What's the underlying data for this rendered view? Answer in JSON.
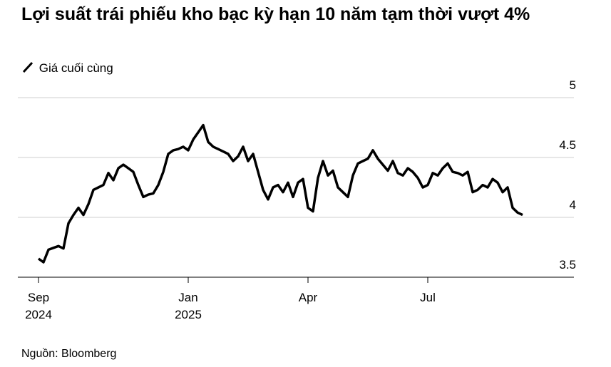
{
  "chart_data": {
    "type": "line",
    "title": "Lợi suất trái phiếu kho bạc kỳ hạn 10 năm tạm thời vượt 4%",
    "source": "Nguồn: Bloomberg",
    "categories": [
      "Sep 2024",
      null,
      null,
      null,
      null,
      null,
      null,
      null,
      null,
      null,
      null,
      null,
      null,
      null,
      null,
      null,
      null,
      null,
      null,
      null,
      null,
      null,
      null,
      null,
      null,
      null,
      null,
      null,
      null,
      null,
      "Jan 2025",
      null,
      null,
      null,
      null,
      null,
      null,
      null,
      null,
      null,
      null,
      null,
      null,
      null,
      null,
      null,
      null,
      null,
      null,
      null,
      null,
      null,
      null,
      null,
      "Apr",
      null,
      null,
      null,
      null,
      null,
      null,
      null,
      null,
      null,
      null,
      null,
      null,
      null,
      null,
      null,
      null,
      null,
      null,
      null,
      null,
      null,
      null,
      null,
      "Jul",
      null,
      null,
      null,
      null,
      null,
      null,
      null,
      null,
      null,
      null,
      null,
      null,
      null,
      null,
      null,
      null,
      null,
      null,
      null
    ],
    "series": [
      {
        "name": "Giá cuối cùng",
        "color": "#000000",
        "values": [
          3.655,
          3.625,
          3.73,
          3.745,
          3.76,
          3.74,
          3.95,
          4.02,
          4.08,
          4.02,
          4.11,
          4.23,
          4.25,
          4.27,
          4.37,
          4.31,
          4.41,
          4.44,
          4.41,
          4.38,
          4.27,
          4.17,
          4.19,
          4.2,
          4.27,
          4.38,
          4.53,
          4.56,
          4.57,
          4.59,
          4.56,
          4.65,
          4.71,
          4.77,
          4.63,
          4.59,
          4.57,
          4.55,
          4.53,
          4.47,
          4.51,
          4.59,
          4.47,
          4.53,
          4.38,
          4.23,
          4.15,
          4.25,
          4.27,
          4.21,
          4.29,
          4.17,
          4.29,
          4.32,
          4.08,
          4.05,
          4.33,
          4.47,
          4.35,
          4.39,
          4.25,
          4.21,
          4.17,
          4.35,
          4.45,
          4.47,
          4.49,
          4.56,
          4.49,
          4.44,
          4.39,
          4.47,
          4.37,
          4.35,
          4.41,
          4.38,
          4.33,
          4.25,
          4.27,
          4.37,
          4.35,
          4.41,
          4.45,
          4.38,
          4.37,
          4.35,
          4.38,
          4.21,
          4.23,
          4.27,
          4.25,
          4.32,
          4.29,
          4.21,
          4.25,
          4.08,
          4.04,
          4.02
        ]
      }
    ],
    "ylim": [
      3.5,
      5
    ],
    "yticks": [
      3.5,
      4,
      4.5,
      5
    ],
    "grid": true
  }
}
